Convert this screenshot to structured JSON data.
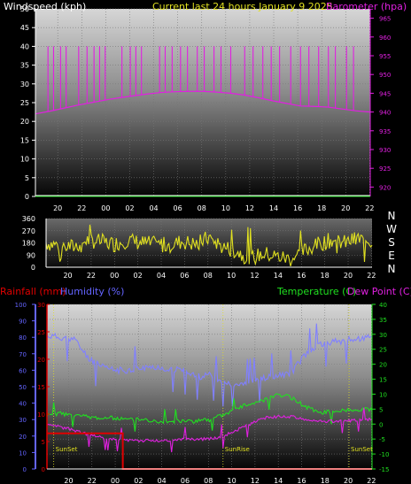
{
  "chart_data": [
    {
      "type": "line",
      "title": "Current last 24 hours  January 9 2025",
      "left_axis_label": "Windspeed (kph)",
      "right_axis_label": "Barometer (hpa)",
      "x_tick_labels": [
        "20",
        "22",
        "00",
        "02",
        "04",
        "06",
        "08",
        "10",
        "12",
        "14",
        "16",
        "18",
        "20",
        "22"
      ],
      "left_ylim": [
        0,
        50
      ],
      "left_ticks": [
        0,
        5,
        10,
        15,
        20,
        25,
        30,
        35,
        40,
        45,
        50
      ],
      "right_ylim": [
        917.5,
        967.5
      ],
      "right_ticks": [
        920,
        925,
        930,
        935,
        940,
        945,
        950,
        955,
        960,
        965
      ],
      "series": [
        {
          "color": "#e020e0",
          "axis": "right",
          "x": [
            0,
            1,
            2,
            3,
            4,
            5,
            6,
            7,
            8,
            9,
            10,
            11,
            12,
            13,
            14,
            15,
            16,
            17,
            18,
            19,
            20,
            21,
            22,
            23,
            24
          ],
          "values": [
            939.5,
            940.2,
            941.0,
            941.8,
            942.5,
            943.2,
            943.8,
            944.3,
            944.8,
            945.2,
            945.4,
            945.5,
            945.5,
            945.3,
            945.0,
            944.5,
            943.8,
            943.0,
            942.3,
            941.6,
            941.5,
            941.3,
            940.8,
            940.3,
            940.0
          ],
          "spike_value": 957.5
        }
      ],
      "grid": true
    },
    {
      "type": "line",
      "ylim": [
        0,
        360
      ],
      "y_ticks": [
        0,
        90,
        180,
        270,
        360
      ],
      "x_tick_labels": [
        "20",
        "22",
        "00",
        "02",
        "04",
        "06",
        "08",
        "10",
        "12",
        "14",
        "16",
        "18",
        "20",
        "22"
      ],
      "right_labels": [
        "N",
        "W",
        "S",
        "E",
        "N"
      ],
      "series": [
        {
          "color": "#e0e020",
          "x": [
            0,
            1,
            2,
            3,
            4,
            5,
            6,
            7,
            8,
            9,
            10,
            11,
            12,
            13,
            14,
            15,
            16,
            17,
            18,
            19,
            20,
            21,
            22,
            23,
            24
          ],
          "values": [
            180,
            160,
            150,
            200,
            190,
            170,
            200,
            180,
            170,
            160,
            190,
            170,
            220,
            150,
            120,
            60,
            100,
            80,
            60,
            120,
            170,
            200,
            180,
            210,
            190
          ]
        }
      ],
      "grid": true
    },
    {
      "type": "line",
      "left_axis_labels": [
        "Rainfall (mm)",
        "Humidity (%)"
      ],
      "right_axis_labels": [
        "Temperature (C)",
        "Dew Point (C)"
      ],
      "humidity_ylim": [
        0,
        100
      ],
      "humidity_ticks": [
        0,
        10,
        20,
        30,
        40,
        50,
        60,
        70,
        80,
        90,
        100
      ],
      "rain_ylim": [
        0,
        30
      ],
      "rain_ticks": [
        0,
        5,
        10,
        15,
        20,
        25,
        30
      ],
      "temp_ylim": [
        -15,
        40
      ],
      "temp_ticks": [
        -15,
        -10,
        -5,
        0,
        5,
        10,
        15,
        20,
        25,
        30,
        35,
        40
      ],
      "x_tick_labels": [
        "20",
        "22",
        "00",
        "02",
        "04",
        "06",
        "08",
        "10",
        "12",
        "14",
        "16",
        "18",
        "20",
        "22"
      ],
      "annotations": [
        {
          "text": "SunSet",
          "x": 0.5
        },
        {
          "text": "SunRise",
          "x": 13.0
        },
        {
          "text": "SunSet",
          "x": 22.3
        }
      ],
      "series": [
        {
          "name": "Humidity (%)",
          "color": "#8080ff",
          "axis": "humidity",
          "x": [
            0,
            1,
            2,
            3,
            4,
            5,
            6,
            7,
            8,
            9,
            10,
            11,
            12,
            13,
            14,
            15,
            16,
            17,
            18,
            19,
            20,
            21,
            22,
            23,
            24
          ],
          "values": [
            81,
            80,
            79,
            68,
            62,
            60,
            60,
            61,
            62,
            61,
            60,
            56,
            57,
            52,
            52,
            53,
            55,
            57,
            58,
            69,
            75,
            77,
            78,
            79,
            80
          ]
        },
        {
          "name": "Temperature (C)",
          "color": "#20e020",
          "axis": "temp",
          "x": [
            0,
            1,
            2,
            3,
            4,
            5,
            6,
            7,
            8,
            9,
            10,
            11,
            12,
            13,
            14,
            15,
            16,
            17,
            18,
            19,
            20,
            21,
            22,
            23,
            24
          ],
          "values": [
            3,
            3.5,
            3,
            2.5,
            2,
            2,
            1.5,
            1.5,
            1,
            1,
            1,
            1,
            1.5,
            3,
            5,
            7,
            8,
            10,
            9,
            6,
            4,
            4,
            4.5,
            5,
            5
          ]
        },
        {
          "name": "Dew Point (C)",
          "color": "#e020e0",
          "axis": "temp",
          "x": [
            0,
            1,
            2,
            3,
            4,
            5,
            6,
            7,
            8,
            9,
            10,
            11,
            12,
            13,
            14,
            15,
            16,
            17,
            18,
            19,
            20,
            21,
            22,
            23,
            24
          ],
          "values": [
            -0.5,
            -1,
            -2,
            -3.5,
            -4.5,
            -5,
            -5.5,
            -5.5,
            -5.5,
            -5.5,
            -5,
            -5,
            -5,
            -4,
            -2,
            0,
            2,
            2.5,
            2.5,
            1.5,
            1,
            1,
            1,
            1.5,
            1.5
          ]
        },
        {
          "name": "Rainfall (mm)",
          "color": "#e00000",
          "axis": "rain",
          "x": [
            0,
            5.6,
            5.6,
            24
          ],
          "values": [
            6.5,
            6.5,
            0,
            0
          ]
        }
      ],
      "grid": true
    }
  ],
  "colors": {
    "wind": "#ffffff",
    "barometer": "#e020e0",
    "direction": "#e0e020",
    "rain": "#e00000",
    "humidity": "#8080ff",
    "temperature": "#20e020",
    "dewpoint": "#e020e0",
    "axis_left_blue": "#6464ff",
    "axis_left_red": "#e00000",
    "axis_right_green": "#20e020",
    "axis_right_magenta": "#e020e0"
  }
}
